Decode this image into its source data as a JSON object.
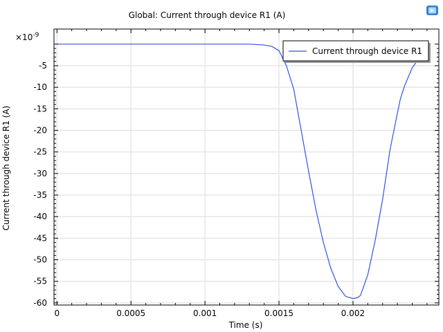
{
  "chart_data": {
    "type": "line",
    "title": "Global: Current through device R1 (A)",
    "xlabel": "Time (s)",
    "ylabel": "Current through device R1 (A)",
    "y_exponent_label": "×10",
    "y_exponent_power": "-9",
    "xlim": [
      -2e-05,
      0.00258
    ],
    "ylim": [
      -60.5,
      3.5
    ],
    "x_ticks": [
      0,
      0.0005,
      0.001,
      0.0015,
      0.002
    ],
    "x_tick_labels": [
      "0",
      "0.0005",
      "0.001",
      "0.0015",
      "0.002"
    ],
    "y_ticks": [
      -5,
      -10,
      -15,
      -20,
      -25,
      -30,
      -35,
      -40,
      -45,
      -50,
      -55,
      -60
    ],
    "y_tick_labels": [
      "-5",
      "-10",
      "-15",
      "-20",
      "-25",
      "-30",
      "-35",
      "-40",
      "-45",
      "-50",
      "-55",
      "-60"
    ],
    "grid": true,
    "legend_position": "top-right",
    "series": [
      {
        "name": "Current through device R1",
        "color": "#3352e0",
        "x": [
          0,
          0.0005,
          0.001,
          0.0013,
          0.00135,
          0.0014,
          0.00145,
          0.0015,
          0.00155,
          0.0016,
          0.00165,
          0.0017,
          0.00175,
          0.0018,
          0.00185,
          0.0019,
          0.00195,
          0.002,
          0.00203,
          0.00205,
          0.0021,
          0.00215,
          0.0022,
          0.00225,
          0.0023,
          0.00232,
          0.00235,
          0.0024,
          0.00245,
          0.00246
        ],
        "y": [
          0,
          0,
          0,
          0,
          -0.1,
          -0.2,
          -0.5,
          -1.5,
          -5,
          -10.5,
          -20,
          -29.5,
          -38.5,
          -46,
          -52,
          -56.2,
          -58.5,
          -59,
          -58.8,
          -58.3,
          -53.5,
          -45.5,
          -36,
          -24.5,
          -16,
          -12.7,
          -9.5,
          -5.5,
          -3,
          0
        ]
      }
    ]
  }
}
